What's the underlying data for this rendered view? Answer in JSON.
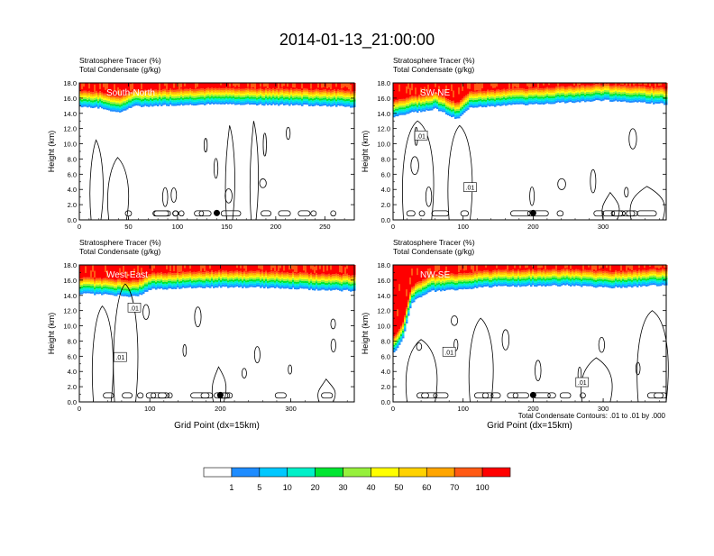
{
  "page_title": "2014-01-13_21:00:00",
  "colors": {
    "scale": [
      "#ffffff",
      "#1e8cff",
      "#00c8ff",
      "#00f0c8",
      "#00e632",
      "#96f03c",
      "#ffff00",
      "#ffd200",
      "#ffa500",
      "#ff5a14",
      "#ff0000"
    ],
    "contour": "#000000"
  },
  "colorbar": {
    "labels": [
      "1",
      "5",
      "10",
      "20",
      "30",
      "40",
      "50",
      "60",
      "70",
      "100"
    ]
  },
  "footnote": "Total Condensate Contours: .01 to .01 by .000",
  "chart_data": [
    {
      "type": "heatmap",
      "panel_label": "South-North",
      "title_line1": "Stratosphere Tracer   (%)",
      "title_line2": "Total Condensate   (g/kg)",
      "ylabel": "Height (km)",
      "xlabel": "",
      "xlim": [
        0,
        280
      ],
      "ylim": [
        0,
        18
      ],
      "xticks": [
        0,
        50,
        100,
        150,
        200,
        250
      ],
      "yticks": [
        "0.0",
        "2.0",
        "4.0",
        "6.0",
        "8.0",
        "10.0",
        "12.0",
        "14.0",
        "16.0",
        "18.0"
      ],
      "tracer_base_km": [
        [
          0,
          14.9
        ],
        [
          20,
          14.7
        ],
        [
          40,
          14.1
        ],
        [
          55,
          14.9
        ],
        [
          100,
          15.1
        ],
        [
          150,
          15.2
        ],
        [
          200,
          15.1
        ],
        [
          250,
          15.0
        ],
        [
          280,
          14.8
        ]
      ],
      "contour_labels": [],
      "marker": {
        "x": 140,
        "y": 0.9
      }
    },
    {
      "type": "heatmap",
      "panel_label": "SW-NE",
      "title_line1": "Stratosphere Tracer   (%)",
      "title_line2": "Total Condensate   (g/kg)",
      "ylabel": "Height (km)",
      "xlabel": "",
      "xlim": [
        0,
        390
      ],
      "ylim": [
        0,
        18
      ],
      "xticks": [
        0,
        100,
        200,
        300
      ],
      "yticks": [
        "0.0",
        "2.0",
        "4.0",
        "6.0",
        "8.0",
        "10.0",
        "12.0",
        "14.0",
        "16.0",
        "18.0"
      ],
      "tracer_base_km": [
        [
          0,
          13.5
        ],
        [
          20,
          14.0
        ],
        [
          60,
          14.6
        ],
        [
          90,
          13.2
        ],
        [
          110,
          14.8
        ],
        [
          200,
          15.2
        ],
        [
          280,
          15.6
        ],
        [
          300,
          15.7
        ],
        [
          390,
          15.2
        ]
      ],
      "contour_labels": [
        {
          "text": ".01",
          "x": 40,
          "y": 11.1
        },
        {
          "text": ".01",
          "x": 110,
          "y": 4.3
        }
      ],
      "marker": {
        "x": 200,
        "y": 0.9
      }
    },
    {
      "type": "heatmap",
      "panel_label": "West-East",
      "title_line1": "Stratosphere Tracer   (%)",
      "title_line2": "Total Condensate   (g/kg)",
      "ylabel": "Height (km)",
      "xlabel": "Grid Point (dx=15km)",
      "xlim": [
        0,
        390
      ],
      "ylim": [
        0,
        18
      ],
      "xticks": [
        0,
        100,
        200,
        300
      ],
      "yticks": [
        "0.0",
        "2.0",
        "4.0",
        "6.0",
        "8.0",
        "10.0",
        "12.0",
        "14.0",
        "16.0",
        "18.0"
      ],
      "tracer_base_km": [
        [
          0,
          14.2
        ],
        [
          60,
          14.0
        ],
        [
          80,
          13.8
        ],
        [
          100,
          14.8
        ],
        [
          200,
          15.1
        ],
        [
          280,
          15.0
        ],
        [
          340,
          14.7
        ],
        [
          390,
          14.6
        ]
      ],
      "contour_labels": [
        {
          "text": ".01",
          "x": 78,
          "y": 12.4
        },
        {
          "text": ".01",
          "x": 58,
          "y": 5.9
        }
      ],
      "marker": {
        "x": 200,
        "y": 0.9
      }
    },
    {
      "type": "heatmap",
      "panel_label": "NW-SE",
      "title_line1": "Stratosphere Tracer   (%)",
      "title_line2": "Total Condensate   (g/kg)",
      "ylabel": "Height (km)",
      "xlabel": "Grid Point (dx=15km)",
      "xlim": [
        0,
        390
      ],
      "ylim": [
        0,
        18
      ],
      "xticks": [
        0,
        100,
        200,
        300
      ],
      "yticks": [
        "0.0",
        "2.0",
        "4.0",
        "6.0",
        "8.0",
        "10.0",
        "12.0",
        "14.0",
        "16.0",
        "18.0"
      ],
      "tracer_base_km": [
        [
          0,
          6.5
        ],
        [
          12,
          8.0
        ],
        [
          25,
          13.0
        ],
        [
          50,
          14.5
        ],
        [
          150,
          15.2
        ],
        [
          250,
          15.3
        ],
        [
          300,
          15.0
        ],
        [
          340,
          15.1
        ],
        [
          390,
          15.4
        ]
      ],
      "contour_labels": [
        {
          "text": ".01",
          "x": 80,
          "y": 6.6
        },
        {
          "text": ".01",
          "x": 270,
          "y": 2.6
        }
      ],
      "marker": {
        "x": 200,
        "y": 0.9
      }
    }
  ]
}
